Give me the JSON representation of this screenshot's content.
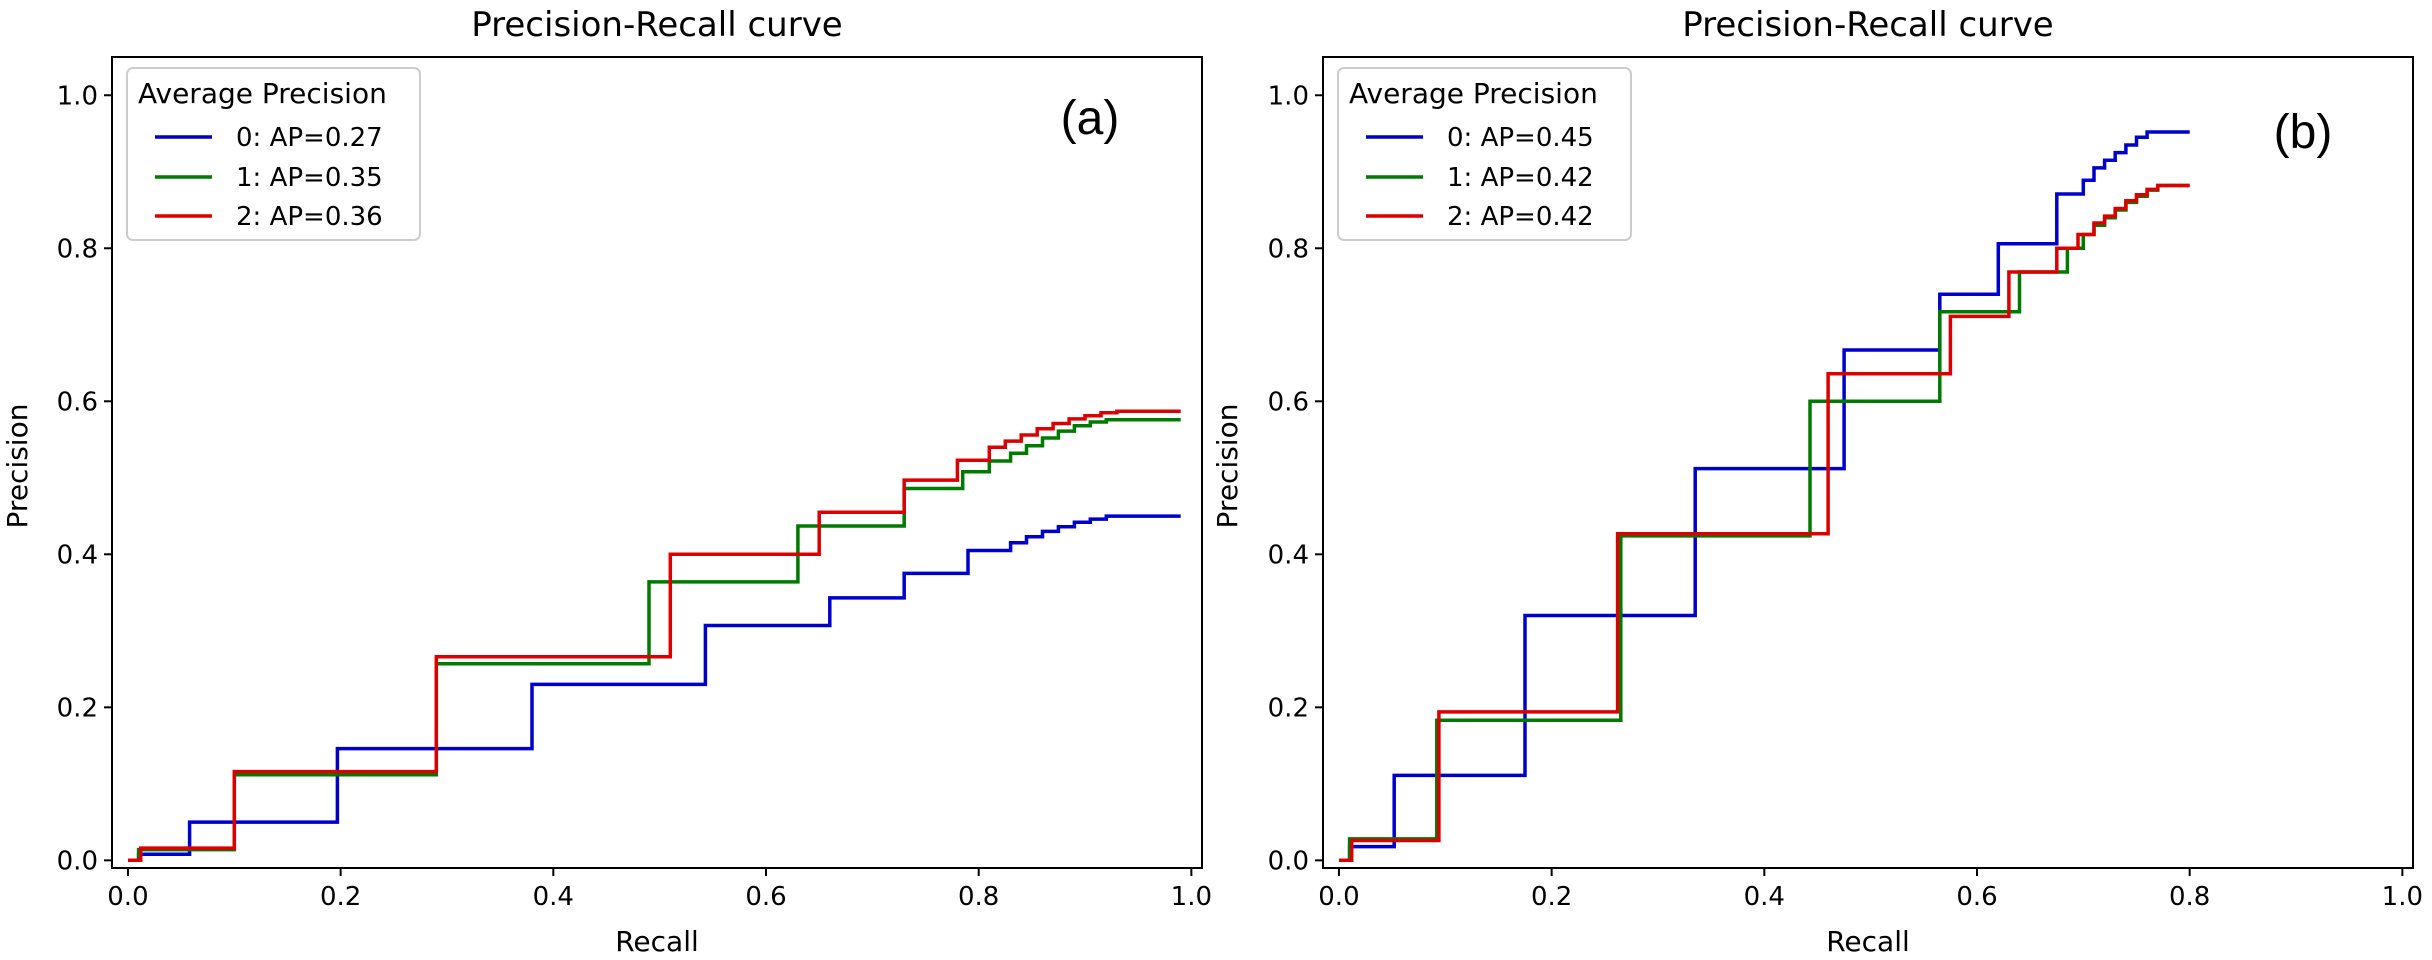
{
  "colors": {
    "series0": "#0000cc",
    "series1": "#007a00",
    "series2": "#dd0000",
    "axes": "#000000",
    "background": "#ffffff"
  },
  "chart_data": [
    {
      "type": "line",
      "step": true,
      "panel_label": "(a)",
      "title": "Precision-Recall curve",
      "xlabel": "Recall",
      "ylabel": "Precision",
      "xlim": [
        -0.015,
        1.01
      ],
      "ylim": [
        -0.01,
        1.05
      ],
      "xticks": [
        0.0,
        0.2,
        0.4,
        0.6,
        0.8,
        1.0
      ],
      "xtick_labels": [
        "0.0",
        "0.2",
        "0.4",
        "0.6",
        "0.8",
        "1.0"
      ],
      "yticks": [
        0.0,
        0.2,
        0.4,
        0.6,
        0.8,
        1.0
      ],
      "ytick_labels": [
        "0.0",
        "0.2",
        "0.4",
        "0.6",
        "0.8",
        "1.0"
      ],
      "grid": false,
      "legend": {
        "title": "Average Precision",
        "placement": "top-left"
      },
      "series": [
        {
          "name": "0: AP=0.27",
          "x": [
            0.0,
            0.01,
            0.058,
            0.197,
            0.38,
            0.543,
            0.66,
            0.73,
            0.79,
            0.83,
            0.845,
            0.86,
            0.875,
            0.89,
            0.905,
            0.92,
            0.99
          ],
          "y": [
            0.0,
            0.008,
            0.05,
            0.146,
            0.23,
            0.307,
            0.343,
            0.375,
            0.405,
            0.415,
            0.423,
            0.43,
            0.436,
            0.442,
            0.446,
            0.45,
            0.45
          ]
        },
        {
          "name": "1: AP=0.35",
          "x": [
            0.0,
            0.01,
            0.1,
            0.29,
            0.49,
            0.63,
            0.73,
            0.785,
            0.81,
            0.83,
            0.845,
            0.86,
            0.875,
            0.89,
            0.905,
            0.92,
            0.99
          ],
          "y": [
            0.0,
            0.014,
            0.112,
            0.257,
            0.364,
            0.437,
            0.486,
            0.508,
            0.522,
            0.532,
            0.542,
            0.552,
            0.561,
            0.568,
            0.573,
            0.576,
            0.576
          ]
        },
        {
          "name": "2: AP=0.36",
          "x": [
            0.0,
            0.012,
            0.1,
            0.29,
            0.51,
            0.65,
            0.73,
            0.78,
            0.81,
            0.825,
            0.84,
            0.855,
            0.87,
            0.885,
            0.9,
            0.915,
            0.93,
            0.99
          ],
          "y": [
            0.0,
            0.016,
            0.116,
            0.266,
            0.4,
            0.455,
            0.497,
            0.523,
            0.54,
            0.548,
            0.556,
            0.564,
            0.571,
            0.577,
            0.581,
            0.585,
            0.587,
            0.587
          ]
        }
      ]
    },
    {
      "type": "line",
      "step": true,
      "panel_label": "(b)",
      "title": "Precision-Recall curve",
      "xlabel": "Recall",
      "ylabel": "Precision",
      "xlim": [
        -0.015,
        1.01
      ],
      "ylim": [
        -0.01,
        1.05
      ],
      "xticks": [
        0.0,
        0.2,
        0.4,
        0.6,
        0.8,
        1.0
      ],
      "xtick_labels": [
        "0.0",
        "0.2",
        "0.4",
        "0.6",
        "0.8",
        "1.0"
      ],
      "yticks": [
        0.0,
        0.2,
        0.4,
        0.6,
        0.8,
        1.0
      ],
      "ytick_labels": [
        "0.0",
        "0.2",
        "0.4",
        "0.6",
        "0.8",
        "1.0"
      ],
      "grid": false,
      "legend": {
        "title": "Average Precision",
        "placement": "top-left"
      },
      "series": [
        {
          "name": "0: AP=0.45",
          "x": [
            0.0,
            0.01,
            0.052,
            0.175,
            0.335,
            0.475,
            0.565,
            0.62,
            0.675,
            0.7,
            0.71,
            0.72,
            0.73,
            0.74,
            0.75,
            0.76,
            0.8
          ],
          "y": [
            0.0,
            0.018,
            0.111,
            0.32,
            0.512,
            0.667,
            0.74,
            0.806,
            0.871,
            0.889,
            0.905,
            0.915,
            0.925,
            0.935,
            0.945,
            0.952,
            0.952
          ]
        },
        {
          "name": "1: AP=0.42",
          "x": [
            0.0,
            0.01,
            0.092,
            0.265,
            0.443,
            0.565,
            0.64,
            0.685,
            0.7,
            0.71,
            0.72,
            0.73,
            0.74,
            0.75,
            0.76,
            0.77,
            0.8
          ],
          "y": [
            0.0,
            0.028,
            0.183,
            0.424,
            0.6,
            0.717,
            0.769,
            0.8,
            0.818,
            0.83,
            0.84,
            0.85,
            0.86,
            0.868,
            0.876,
            0.882,
            0.882
          ]
        },
        {
          "name": "2: AP=0.42",
          "x": [
            0.0,
            0.012,
            0.094,
            0.262,
            0.46,
            0.575,
            0.63,
            0.675,
            0.695,
            0.71,
            0.72,
            0.73,
            0.74,
            0.75,
            0.76,
            0.77,
            0.8
          ],
          "y": [
            0.0,
            0.026,
            0.194,
            0.427,
            0.636,
            0.711,
            0.769,
            0.8,
            0.818,
            0.833,
            0.842,
            0.852,
            0.862,
            0.87,
            0.877,
            0.882,
            0.882
          ]
        }
      ]
    }
  ]
}
